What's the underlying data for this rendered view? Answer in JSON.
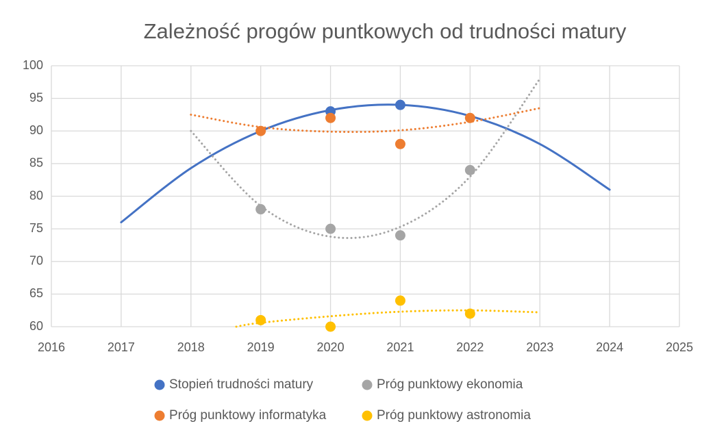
{
  "chart_data": {
    "type": "scatter",
    "title": "Zależność progów puntkowych od trudności matury",
    "xlim": [
      2016,
      2025
    ],
    "xticks": [
      2016,
      2017,
      2018,
      2019,
      2020,
      2021,
      2022,
      2023,
      2024,
      2025
    ],
    "ylim": [
      60,
      100
    ],
    "yticks": [
      60,
      65,
      70,
      75,
      80,
      85,
      90,
      95,
      100
    ],
    "grid": true,
    "legend": "bottom",
    "series": [
      {
        "name": "Stopień trudności matury",
        "color": "#4472c4",
        "x": [
          2020,
          2021
        ],
        "values": [
          93,
          94
        ],
        "trendline": {
          "style": "solid",
          "x": [
            2017,
            2018,
            2019,
            2020,
            2021,
            2022,
            2023,
            2024
          ],
          "values": [
            76,
            84.3,
            90,
            93.2,
            94,
            92.3,
            88,
            81
          ]
        }
      },
      {
        "name": "Próg punktowy ekonomia",
        "color": "#a5a5a5",
        "x": [
          2019,
          2020,
          2021,
          2022
        ],
        "values": [
          78,
          75,
          74,
          84
        ],
        "trendline": {
          "style": "dotted",
          "x": [
            2018,
            2019,
            2020,
            2021,
            2022,
            2023
          ],
          "values": [
            90,
            78.5,
            73.8,
            75.3,
            83,
            98
          ]
        }
      },
      {
        "name": "Próg punktowy informatyka",
        "color": "#ed7d31",
        "x": [
          2019,
          2020,
          2021,
          2022
        ],
        "values": [
          90,
          92,
          88,
          92
        ],
        "trendline": {
          "style": "dotted",
          "x": [
            2018,
            2019,
            2020,
            2021,
            2022,
            2023
          ],
          "values": [
            92.5,
            90.6,
            89.9,
            90.1,
            91.4,
            93.5
          ]
        }
      },
      {
        "name": "Próg punktowy astronomia",
        "color": "#ffc000",
        "x": [
          2019,
          2020,
          2021,
          2022
        ],
        "values": [
          61,
          60,
          64,
          62
        ],
        "trendline": {
          "style": "dotted",
          "x": [
            2018.65,
            2019,
            2020,
            2021,
            2022,
            2023
          ],
          "values": [
            60,
            60.6,
            61.6,
            62.3,
            62.5,
            62.2
          ]
        }
      }
    ]
  }
}
